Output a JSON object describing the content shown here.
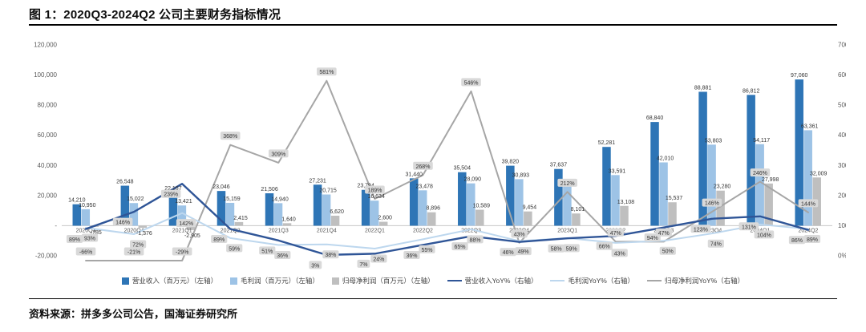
{
  "page": {
    "title": "图 1：2020Q3-2024Q2 公司主要财务指标情况",
    "source": "资料来源：拼多多公司公告，国海证券研究所"
  },
  "colors": {
    "revenue_bar": "#2E75B6",
    "gross_bar": "#9DC3E6",
    "net_bar": "#BFBFBF",
    "revenue_line": "#2F5597",
    "gross_line": "#BDD7EE",
    "net_line": "#A6A6A6",
    "label_bg": "#D9D9D9",
    "axis_text": "#595959",
    "zero_line": "#C8C8C8"
  },
  "chart_data": {
    "type": "combo bar+line",
    "title": "2020Q3-2024Q2 公司主要财务指标情况",
    "categories": [
      "2020Q3",
      "2020Q4",
      "2021Q1",
      "2021Q2",
      "2021Q3",
      "2021Q4",
      "2022Q1",
      "2022Q2",
      "2022Q3",
      "2022Q4",
      "2023Q1",
      "2023Q2",
      "2023Q3",
      "2023Q4",
      "2024Q1",
      "2024Q2"
    ],
    "left_axis": {
      "min": -20000,
      "max": 120000,
      "tick_values": [
        120000,
        100000,
        80000,
        60000,
        40000,
        20000,
        0,
        -20000
      ],
      "tick_labels": [
        "120,000",
        "100,000",
        "80,000",
        "60,000",
        "40,000",
        "20,000",
        "-",
        "-20,000"
      ]
    },
    "right_axis": {
      "min": 0,
      "max": 700,
      "tick_values": [
        700,
        600,
        500,
        400,
        300,
        200,
        100,
        0
      ],
      "tick_labels": [
        "700%",
        "600%",
        "500%",
        "400%",
        "300%",
        "200%",
        "100%",
        "0%"
      ]
    },
    "series": [
      {
        "name": "营业收入（百万元）（左轴）",
        "type": "bar",
        "axis": "left",
        "color": "#2E75B6",
        "values": [
          14210,
          26548,
          22167,
          23046,
          21506,
          27231,
          23794,
          31440,
          35504,
          39820,
          37637,
          52281,
          68840,
          88881,
          86812,
          97060
        ],
        "labels": [
          "14,210",
          "26,548",
          "22,167",
          "23,046",
          "21,506",
          "27,231",
          "23,794",
          "31,440",
          "35,504",
          "39,820",
          "37,637",
          "52,281",
          "68,840",
          "88,881",
          "86,812",
          "97,060"
        ]
      },
      {
        "name": "毛利润（百万元）（左轴）",
        "type": "bar",
        "axis": "left",
        "color": "#9DC3E6",
        "values": [
          10950,
          15022,
          13421,
          15159,
          14940,
          20715,
          16634,
          23478,
          28090,
          30893,
          26512,
          33591,
          42010,
          53803,
          54117,
          63361
        ],
        "labels": [
          "10,950",
          "15,022",
          "13,421",
          "15,159",
          "14,940",
          "20,715",
          "16,634",
          "23,478",
          "28,090",
          "30,893",
          "26,512",
          "33,591",
          "42,010",
          "53,803",
          "54,117",
          "63,361"
        ]
      },
      {
        "name": "归母净利润（百万元）（左轴）",
        "type": "bar",
        "axis": "left",
        "color": "#BFBFBF",
        "values": [
          -785,
          -1376,
          -2905,
          2415,
          1640,
          6620,
          2600,
          8896,
          10589,
          9454,
          8101,
          13108,
          15537,
          23280,
          27998,
          32009
        ],
        "labels": [
          "-785",
          "-1,376",
          "-2,905",
          "2,415",
          "1,640",
          "6,620",
          "2,600",
          "8,896",
          "10,589",
          "9,454",
          "8,101",
          "13,108",
          "15,537",
          "23,280",
          "27,998",
          "32,009"
        ]
      },
      {
        "name": "营业收入YoY%（右轴）",
        "type": "line",
        "axis": "right",
        "color": "#2F5597",
        "values": [
          89,
          146,
          239,
          89,
          51,
          3,
          7,
          36,
          65,
          46,
          58,
          66,
          94,
          123,
          131,
          86
        ],
        "labels": [
          "89%",
          "146%",
          "239%",
          "89%",
          "51%",
          "3%",
          "7%",
          "36%",
          "65%",
          "46%",
          "58%",
          "66%",
          "94%",
          "123%",
          "131%",
          "86%"
        ]
      },
      {
        "name": "毛利润YoY%（右轴）",
        "type": "line",
        "axis": "right",
        "color": "#BDD7EE",
        "values": [
          93,
          72,
          142,
          59,
          36,
          38,
          24,
          55,
          88,
          49,
          59,
          43,
          50,
          74,
          104,
          89
        ],
        "labels": [
          "93%",
          "72%",
          "142%",
          "59%",
          "36%",
          "38%",
          "24%",
          "55%",
          "88%",
          "49%",
          "59%",
          "43%",
          "50%",
          "74%",
          "104%",
          "89%"
        ]
      },
      {
        "name": "归母净利润YoY%（右轴）",
        "type": "line",
        "axis": "right",
        "color": "#A6A6A6",
        "values": [
          -66,
          -21,
          -29,
          368,
          309,
          581,
          189,
          268,
          546,
          43,
          212,
          47,
          47,
          146,
          246,
          144
        ],
        "labels": [
          "-66%",
          "-21%",
          "-29%",
          "368%",
          "309%",
          "581%",
          "189%",
          "268%",
          "546%",
          "43%",
          "212%",
          "47%",
          "47%",
          "146%",
          "246%",
          "144%"
        ]
      }
    ]
  }
}
